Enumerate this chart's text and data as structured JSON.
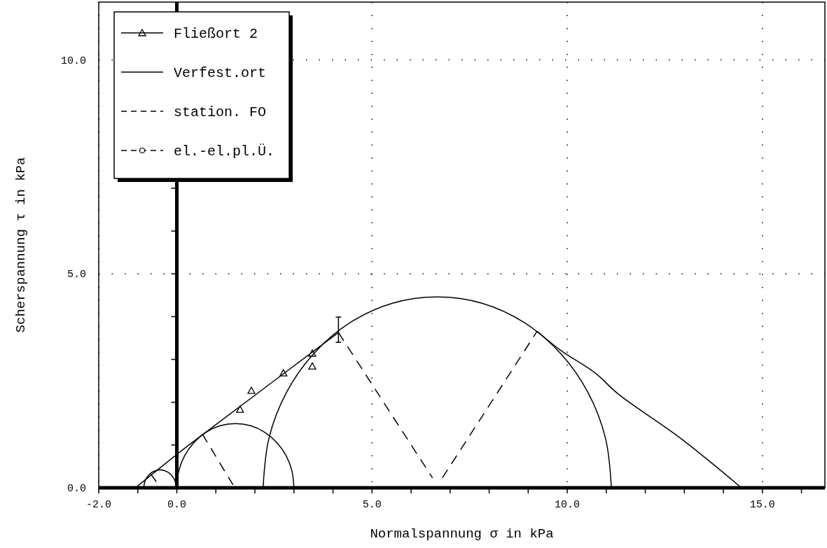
{
  "chart_data": {
    "type": "line",
    "xlabel": "Normalspannung σ in kPa",
    "ylabel": "Scherspannung τ in kPa",
    "xlim": [
      -2,
      16.6
    ],
    "ylim": [
      0,
      11.35
    ],
    "xticks": [
      {
        "value": -2,
        "label": "-2.0"
      },
      {
        "value": -1,
        "label": null
      },
      {
        "value": 0,
        "label": "0.0"
      },
      {
        "value": 1,
        "label": null
      },
      {
        "value": 2,
        "label": null
      },
      {
        "value": 3,
        "label": null
      },
      {
        "value": 4,
        "label": null
      },
      {
        "value": 5,
        "label": "5.0"
      },
      {
        "value": 6,
        "label": null
      },
      {
        "value": 7,
        "label": null
      },
      {
        "value": 8,
        "label": null
      },
      {
        "value": 9,
        "label": null
      },
      {
        "value": 10,
        "label": "10.0"
      },
      {
        "value": 11,
        "label": null
      },
      {
        "value": 12,
        "label": null
      },
      {
        "value": 13,
        "label": null
      },
      {
        "value": 14,
        "label": null
      },
      {
        "value": 15,
        "label": "15.0"
      },
      {
        "value": 16,
        "label": null
      }
    ],
    "yticks": [
      {
        "value": 0,
        "label": "0.0"
      },
      {
        "value": 1,
        "label": null
      },
      {
        "value": 2,
        "label": null
      },
      {
        "value": 3,
        "label": null
      },
      {
        "value": 4,
        "label": null
      },
      {
        "value": 5,
        "label": "5.0"
      },
      {
        "value": 6,
        "label": null
      },
      {
        "value": 7,
        "label": null
      },
      {
        "value": 8,
        "label": null
      },
      {
        "value": 9,
        "label": null
      },
      {
        "value": 10,
        "label": "10.0"
      },
      {
        "value": 11,
        "label": null
      }
    ],
    "grid": true,
    "legend": "top left",
    "series": [
      {
        "name": "Fließort 2",
        "type": "scatter",
        "marker": "triangle",
        "line_style": "solid",
        "color": "#000000",
        "x": [
          1.62,
          1.91,
          2.73,
          3.47,
          3.47
        ],
        "values": [
          1.83,
          2.27,
          2.68,
          3.14,
          2.84
        ]
      },
      {
        "color": "#000000",
        "x": [
          -1.06,
          0,
          0.92,
          4.14
        ],
        "values": [
          0,
          0.78,
          1.42,
          3.63
        ],
        "errors": [
          null,
          null,
          null,
          [
            3.4,
            3.99
          ]
        ]
      },
      {
        "name": "Verfest.ort",
        "line_style": "solid",
        "color": "#000000",
        "x": [
          9.23,
          9.82,
          10.72,
          11.31,
          12.93,
          14.46
        ],
        "values": [
          3.66,
          3.22,
          2.68,
          2.19,
          1.14,
          0
        ]
      },
      {
        "name": "station. FO",
        "line_style": "dashed",
        "color": "#000000",
        "x": [
          -0.67,
          -0.47,
          -0.3,
          0.65,
          1.44,
          2.8,
          4.14,
          6.55,
          6.68,
          6.8,
          9.23
        ],
        "values": [
          0.33,
          0.07,
          null,
          1.26,
          0.07,
          null,
          3.63,
          0.23,
          null,
          0.23,
          3.66
        ]
      },
      {
        "name": "el.-el.pl.Ü.",
        "line_style": "dashed",
        "marker": "circle",
        "color": "#000000"
      },
      {
        "color": "#000000",
        "x": [
          -0.85,
          -0.79,
          -0.64,
          -0.43,
          -0.22,
          -0.07,
          -0.01
        ],
        "values": [
          0,
          0.21,
          0.36,
          0.42,
          0.36,
          0.21,
          0
        ]
      },
      {
        "color": "#000000",
        "x": [
          0,
          0.05,
          0.2,
          0.44,
          0.75,
          1.11,
          1.5,
          1.89,
          2.25,
          2.56,
          2.8,
          2.95,
          3
        ],
        "values": [
          0,
          0.39,
          0.75,
          1.06,
          1.3,
          1.45,
          1.5,
          1.45,
          1.3,
          1.06,
          0.75,
          0.39,
          0
        ]
      },
      {
        "color": "#000000",
        "x": [
          2.21,
          2.36,
          2.81,
          3.52,
          4.44,
          5.51,
          6.67,
          7.83,
          8.9,
          9.82,
          10.53,
          10.98,
          11.13
        ],
        "values": [
          0,
          1.16,
          2.23,
          3.15,
          3.86,
          4.31,
          4.46,
          4.31,
          3.86,
          3.15,
          2.23,
          1.16,
          0
        ]
      }
    ]
  }
}
